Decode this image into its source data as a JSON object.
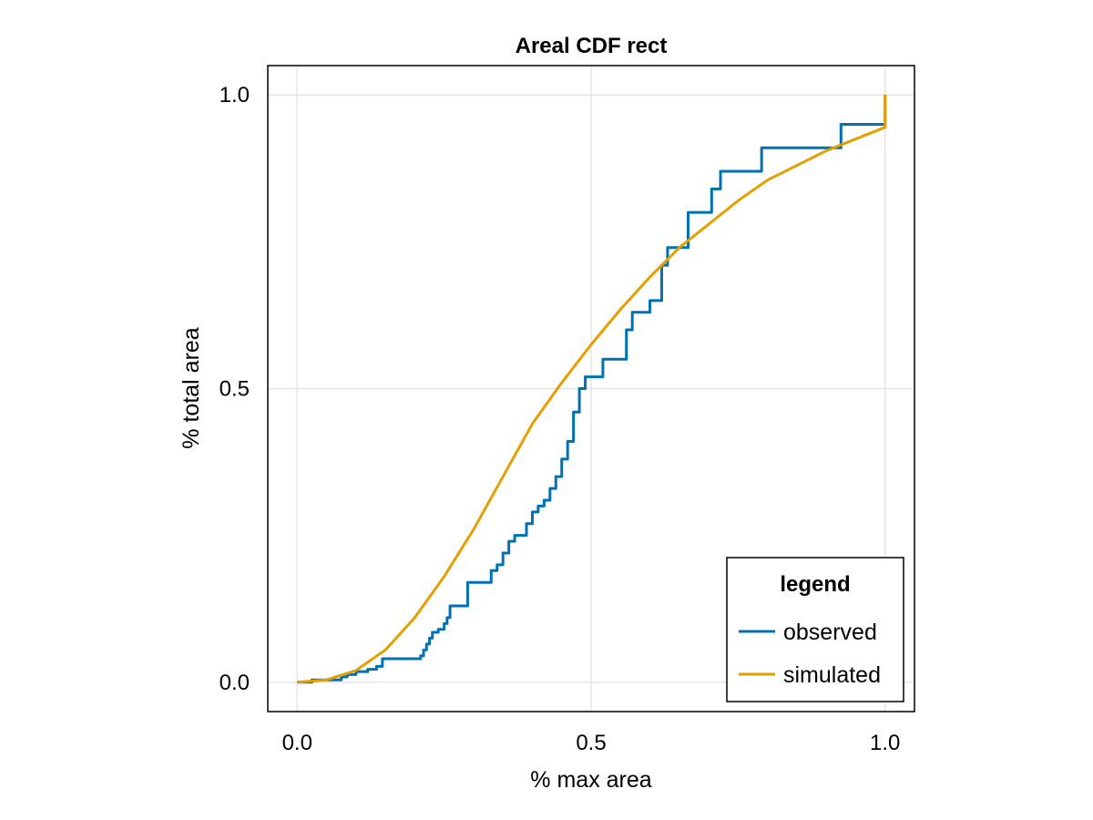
{
  "chart_data": {
    "type": "line",
    "title": "Areal CDF rect",
    "xlabel": "% max area",
    "ylabel": "% total area",
    "xlim": [
      -0.05,
      1.05
    ],
    "ylim": [
      -0.05,
      1.05
    ],
    "xticks": [
      0.0,
      0.5,
      1.0
    ],
    "xtick_labels": [
      "0.0",
      "0.5",
      "1.0"
    ],
    "yticks": [
      0.0,
      0.5,
      1.0
    ],
    "ytick_labels": [
      "0.0",
      "0.5",
      "1.0"
    ],
    "grid": true,
    "legend": {
      "title": "legend",
      "placement": "bottom-right"
    },
    "series": [
      {
        "name": "observed",
        "color": "#0072b2",
        "step": true,
        "x": [
          0.0,
          0.025,
          0.05,
          0.075,
          0.085,
          0.1,
          0.12,
          0.135,
          0.145,
          0.21,
          0.215,
          0.22,
          0.225,
          0.23,
          0.24,
          0.25,
          0.255,
          0.26,
          0.29,
          0.32,
          0.33,
          0.34,
          0.35,
          0.36,
          0.37,
          0.39,
          0.4,
          0.41,
          0.42,
          0.43,
          0.44,
          0.45,
          0.46,
          0.47,
          0.48,
          0.49,
          0.5,
          0.52,
          0.55,
          0.56,
          0.57,
          0.6,
          0.62,
          0.63,
          0.665,
          0.705,
          0.72,
          0.75,
          0.79,
          0.925,
          0.99,
          1.0
        ],
        "y": [
          0.0,
          0.004,
          0.004,
          0.009,
          0.013,
          0.018,
          0.022,
          0.027,
          0.04,
          0.045,
          0.055,
          0.065,
          0.075,
          0.085,
          0.09,
          0.1,
          0.11,
          0.13,
          0.17,
          0.17,
          0.19,
          0.2,
          0.22,
          0.24,
          0.25,
          0.27,
          0.29,
          0.3,
          0.31,
          0.33,
          0.35,
          0.38,
          0.41,
          0.46,
          0.5,
          0.52,
          0.52,
          0.55,
          0.55,
          0.6,
          0.63,
          0.65,
          0.71,
          0.74,
          0.8,
          0.84,
          0.87,
          0.87,
          0.91,
          0.95,
          0.95,
          1.0
        ]
      },
      {
        "name": "simulated",
        "color": "#e69f00",
        "step": false,
        "x": [
          0.0,
          0.05,
          0.1,
          0.15,
          0.2,
          0.25,
          0.3,
          0.35,
          0.4,
          0.45,
          0.5,
          0.55,
          0.6,
          0.65,
          0.7,
          0.75,
          0.8,
          0.85,
          0.9,
          0.95,
          1.0,
          1.0
        ],
        "y": [
          0.0,
          0.004,
          0.02,
          0.055,
          0.11,
          0.18,
          0.26,
          0.35,
          0.44,
          0.51,
          0.575,
          0.635,
          0.69,
          0.74,
          0.78,
          0.82,
          0.855,
          0.88,
          0.905,
          0.925,
          0.945,
          1.0
        ]
      }
    ]
  }
}
